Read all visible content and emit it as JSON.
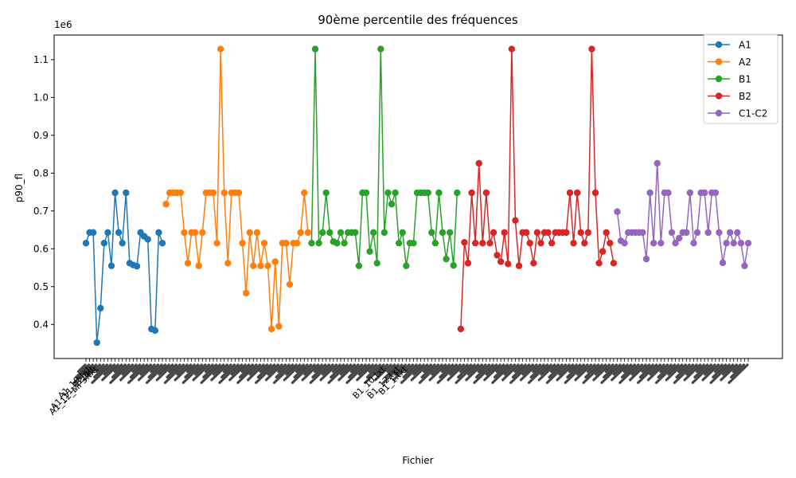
{
  "chart_data": {
    "type": "line",
    "title": "90ème percentile des fréquences",
    "xlabel": "Fichier",
    "ylabel": "p90_fl",
    "y_offset_label": "1e6",
    "ylim": [
      310000,
      1165000
    ],
    "yticks": [
      400000,
      500000,
      600000,
      700000,
      800000,
      900000,
      1000000,
      1100000
    ],
    "ytick_labels": [
      "0.4",
      "0.5",
      "0.6",
      "0.7",
      "0.8",
      "0.9",
      "1.0",
      "1.1"
    ],
    "grid": false,
    "legend_position": "top-right",
    "markers": "circle",
    "x_tick_labels_note": "Tick labels on the x-axis are illegible overlapping file names; the only partly readable fragments are listed.",
    "x_tick_fragments": [
      "A1_10.txt",
      "A1_12_MP3.txt",
      "A1_11_12.txt",
      "B1_10.txt",
      "B1_12.txt",
      "B1_1.txt"
    ],
    "series": [
      {
        "name": "A1",
        "color": "#1f77b4",
        "values": [
          615000,
          643000,
          643000,
          352000,
          443000,
          615000,
          643000,
          555000,
          748000,
          643000,
          615000,
          748000,
          562000,
          557000,
          554000,
          643000,
          633000,
          625000,
          388000,
          384000,
          643000,
          615000
        ]
      },
      {
        "name": "A2",
        "color": "#ff7f0e",
        "values": [
          718000,
          748000,
          748000,
          748000,
          748000,
          643000,
          562000,
          643000,
          643000,
          555000,
          643000,
          748000,
          748000,
          748000,
          615000,
          1128000,
          748000,
          562000,
          748000,
          748000,
          748000,
          615000,
          483000,
          643000,
          555000,
          643000,
          555000,
          615000,
          555000,
          388000,
          566000,
          395000,
          615000,
          615000,
          506000,
          615000,
          615000,
          643000,
          748000,
          643000
        ]
      },
      {
        "name": "B1",
        "color": "#2ca02c",
        "values": [
          615000,
          1128000,
          615000,
          643000,
          748000,
          643000,
          619000,
          615000,
          643000,
          615000,
          643000,
          643000,
          643000,
          555000,
          748000,
          748000,
          593000,
          643000,
          562000,
          1128000,
          643000,
          748000,
          718000,
          748000,
          615000,
          643000,
          555000,
          615000,
          615000,
          748000,
          748000,
          748000,
          748000,
          643000,
          615000,
          748000,
          643000,
          573000,
          643000,
          556000,
          748000
        ]
      },
      {
        "name": "B2",
        "color": "#d62728",
        "values": [
          388000,
          617000,
          562000,
          748000,
          615000,
          826000,
          615000,
          748000,
          615000,
          643000,
          583000,
          566000,
          643000,
          560000,
          1128000,
          675000,
          555000,
          643000,
          643000,
          615000,
          562000,
          643000,
          615000,
          643000,
          643000,
          615000,
          643000,
          643000,
          643000,
          643000,
          748000,
          615000,
          748000,
          643000,
          615000,
          643000,
          1128000,
          748000,
          562000,
          593000,
          643000,
          615000,
          562000
        ]
      },
      {
        "name": "C1-C2",
        "color": "#9467bd",
        "values": [
          698000,
          621000,
          615000,
          643000,
          643000,
          643000,
          643000,
          643000,
          573000,
          748000,
          615000,
          826000,
          615000,
          748000,
          748000,
          643000,
          615000,
          628000,
          643000,
          643000,
          748000,
          615000,
          643000,
          748000,
          748000,
          643000,
          748000,
          748000,
          643000,
          563000,
          615000,
          643000,
          615000,
          643000,
          615000,
          555000,
          615000
        ]
      }
    ]
  }
}
